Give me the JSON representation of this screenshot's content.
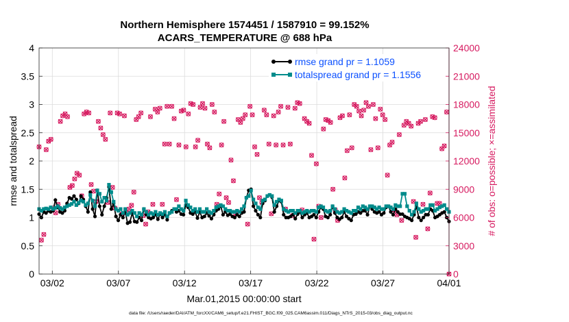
{
  "chart_data": {
    "type": "line",
    "title_line1": "Northern Hemisphere 1574451 / 1587910 = 99.152%",
    "title_line2": "ACARS_TEMPERATURE @ 688 hPa",
    "ylabel_left": "rmse and totalspread",
    "ylabel_right": "# of obs: o=possible; ×=assimilated",
    "xlabel": "Mar.01,2015 00:00:00 start",
    "footer": "data file: /Users/raeder/DAI/ATM_forcXX/CAM6_setup/f.e21.FHIST_BGC.f09_025.CAM6assim.011/Diags_NTrS_2015-03/obs_diag_output.nc",
    "x_ticks": [
      {
        "day": 2,
        "label": "03/02"
      },
      {
        "day": 7,
        "label": "03/07"
      },
      {
        "day": 12,
        "label": "03/12"
      },
      {
        "day": 17,
        "label": "03/17"
      },
      {
        "day": 22,
        "label": "03/22"
      },
      {
        "day": 27,
        "label": "03/27"
      },
      {
        "day": 32,
        "label": "04/01"
      }
    ],
    "xlim": [
      1,
      32
    ],
    "ylim_left": [
      0,
      4
    ],
    "yticks_left": [
      "0",
      "0.5",
      "1",
      "1.5",
      "2",
      "2.5",
      "3",
      "3.5",
      "4"
    ],
    "ylim_right": [
      0,
      24000
    ],
    "yticks_right": [
      "0",
      "3000",
      "6000",
      "9000",
      "12000",
      "15000",
      "18000",
      "21000",
      "24000"
    ],
    "colors": {
      "rmse": "#000000",
      "spread": "#008b8b",
      "obs": "#d6195f",
      "legend_text": "#0a4fff",
      "right_axis": "#d6195f"
    },
    "series": [
      {
        "name": "rmse grand pr = 1.1059",
        "values": [
          1.06,
          1.0,
          1.1,
          1.08,
          1.12,
          1.1,
          1.12,
          1.31,
          1.18,
          1.1,
          1.08,
          1.12,
          1.25,
          1.35,
          1.33,
          1.38,
          1.32,
          1.25,
          1.38,
          1.32,
          1.2,
          1.1,
          1.45,
          1.15,
          1.02,
          1.48,
          1.2,
          1.05,
          1.2,
          1.35,
          1.54,
          1.15,
          1.25,
          1.02,
          0.95,
          1.05,
          1.0,
          1.1,
          0.9,
          0.92,
          1.08,
          0.93,
          0.92,
          1.0,
          0.95,
          1.15,
          1.05,
          1.0,
          0.98,
          1.0,
          1.05,
          0.97,
          1.06,
          1.0,
          1.05,
          0.96,
          1.08,
          1.12,
          1.15,
          1.1,
          1.12,
          1.06,
          1.05,
          1.22,
          1.18,
          1.08,
          1.06,
          1.1,
          0.99,
          1.1,
          1.0,
          1.02,
          1.08,
          1.03,
          0.98,
          1.05,
          1.12,
          1.15,
          1.2,
          1.05,
          1.1,
          1.04,
          1.06,
          1.02,
          1.0,
          1.05,
          1.02,
          1.08,
          1.1,
          1.35,
          1.48,
          1.5,
          1.2,
          1.12,
          1.05,
          1.0,
          1.25,
          1.3,
          1.38,
          1.4,
          1.36,
          1.1,
          1.2,
          1.3,
          1.28,
          1.05,
          1.0,
          1.0,
          1.02,
          1.05,
          0.98,
          1.06,
          1.1,
          1.0,
          1.05,
          1.08,
          1.0,
          1.02,
          1.05,
          1.0,
          1.1,
          1.18,
          1.15,
          1.02,
          1.0,
          1.05,
          1.2,
          1.08,
          1.0,
          0.97,
          1.0,
          1.1,
          1.02,
          0.98,
          0.95,
          1.05,
          1.06,
          1.1,
          1.08,
          1.12,
          1.12,
          1.05,
          1.2,
          1.15,
          1.1,
          1.08,
          1.1,
          1.05,
          1.08,
          1.18,
          1.2,
          1.1,
          1.05,
          1.15,
          1.1,
          1.06,
          1.06,
          1.02,
          1.0,
          0.98,
          0.95,
          1.05,
          1.2,
          1.0,
          0.95,
          1.0,
          1.05,
          1.05,
          1.15,
          1.12,
          1.0,
          1.02,
          1.05,
          1.08,
          1.1,
          1.0,
          0.93
        ]
      },
      {
        "name": "totalspread grand pr = 1.1556",
        "values": [
          1.15,
          1.12,
          1.15,
          1.16,
          1.15,
          1.18,
          1.15,
          1.17,
          1.2,
          1.17,
          1.15,
          1.18,
          1.2,
          1.22,
          1.24,
          1.28,
          1.22,
          1.26,
          1.3,
          1.28,
          1.22,
          1.25,
          1.4,
          1.3,
          1.2,
          1.48,
          1.42,
          1.28,
          1.35,
          1.3,
          1.58,
          1.45,
          1.28,
          1.15,
          1.12,
          1.15,
          1.08,
          1.15,
          1.05,
          1.08,
          1.12,
          1.08,
          1.02,
          1.08,
          1.05,
          1.15,
          1.1,
          1.05,
          1.08,
          1.06,
          1.1,
          1.05,
          1.08,
          1.06,
          1.1,
          1.02,
          1.08,
          1.1,
          1.15,
          1.15,
          1.2,
          1.15,
          1.12,
          1.3,
          1.22,
          1.18,
          1.12,
          1.15,
          1.1,
          1.15,
          1.1,
          1.1,
          1.15,
          1.1,
          1.08,
          1.12,
          1.18,
          1.2,
          1.22,
          1.2,
          1.15,
          1.12,
          1.12,
          1.1,
          1.1,
          1.12,
          1.1,
          1.15,
          1.2,
          1.35,
          1.38,
          1.48,
          1.32,
          1.25,
          1.18,
          1.15,
          1.3,
          1.32,
          1.38,
          1.4,
          1.38,
          1.22,
          1.28,
          1.32,
          1.3,
          1.15,
          1.12,
          1.1,
          1.12,
          1.12,
          1.08,
          1.12,
          1.12,
          1.08,
          1.1,
          1.12,
          1.1,
          1.12,
          1.12,
          1.1,
          1.18,
          1.2,
          1.18,
          1.12,
          1.1,
          1.12,
          1.2,
          1.15,
          1.1,
          1.08,
          1.1,
          1.15,
          1.12,
          1.1,
          1.08,
          1.12,
          1.12,
          1.18,
          1.15,
          1.2,
          1.18,
          1.15,
          1.2,
          1.2,
          1.18,
          1.15,
          1.18,
          1.15,
          1.15,
          1.2,
          1.2,
          1.18,
          1.15,
          1.22,
          1.2,
          1.2,
          1.42,
          1.42,
          1.2,
          1.12,
          1.05,
          1.1,
          1.25,
          1.15,
          1.1,
          1.12,
          1.15,
          1.15,
          1.22,
          1.22,
          1.12,
          1.15,
          1.18,
          1.2,
          1.22,
          1.15,
          1.1
        ]
      }
    ],
    "obs_count": [
      13500,
      3600,
      4200,
      13200,
      14100,
      14300,
      7000,
      6500,
      7400,
      16200,
      16800,
      17000,
      16700,
      9200,
      9400,
      10100,
      10700,
      10500,
      8300,
      17000,
      17200,
      17100,
      9500,
      8800,
      7700,
      16200,
      15500,
      14800,
      14300,
      7600,
      17100,
      9200,
      7000,
      17100,
      17000,
      6400,
      16800,
      6500,
      6900,
      7300,
      8700,
      16400,
      16700,
      17100,
      6200,
      5300,
      6600,
      16700,
      7400,
      17500,
      17200,
      17600,
      7400,
      13800,
      17800,
      13800,
      17800,
      16500,
      7900,
      13700,
      17300,
      17400,
      13500,
      17000,
      18100,
      18000,
      13500,
      14200,
      17700,
      18100,
      17600,
      13800,
      13400,
      18000,
      17200,
      7400,
      8500,
      13700,
      16200,
      8100,
      7600,
      12100,
      9900,
      6400,
      16400,
      16100,
      16500,
      16900,
      5300,
      17800,
      16900,
      13500,
      12700,
      8100,
      7600,
      17400,
      16900,
      13800,
      6400,
      16800,
      13700,
      17200,
      17800,
      13700,
      6900,
      17700,
      13800,
      6200,
      17600,
      18200,
      18100,
      6800,
      16500,
      16200,
      16000,
      12600,
      3700,
      11700,
      7200,
      6000,
      15400,
      16400,
      16300,
      16100,
      9000,
      6800,
      5700,
      16600,
      16800,
      10200,
      13100,
      16900,
      13400,
      18000,
      17800,
      17300,
      16800,
      17400,
      18200,
      17800,
      13200,
      18000,
      16500,
      13400,
      17500,
      16900,
      16400,
      10500,
      13700,
      14000,
      6800,
      6300,
      14800,
      5700,
      15800,
      16200,
      16000,
      15700,
      7700,
      3900,
      16000,
      16200,
      7400,
      16400,
      4800,
      8600,
      16700,
      16600,
      7500,
      7500,
      13300,
      13600,
      17200,
      0
    ]
  },
  "legend": {
    "rmse_label": "rmse grand pr = 1.1059",
    "spread_label": "totalspread grand pr = 1.1556"
  }
}
